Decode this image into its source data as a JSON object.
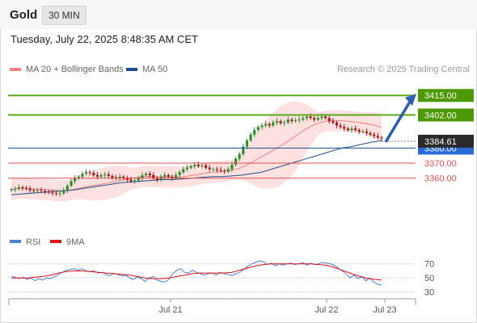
{
  "header": {
    "symbol": "Gold",
    "interval": "30 MIN"
  },
  "timestamp": "Tuesday, July 22, 2025 8:48:35 AM CET",
  "legend": [
    {
      "label": "MA 20 + Bollinger Bands",
      "color": "#f08080"
    },
    {
      "label": "MA 50",
      "color": "#1f4e8c"
    }
  ],
  "source": "Research © 2025 Trading Central",
  "rsi_legend": [
    {
      "label": "RSI",
      "color": "#4a7fd4"
    },
    {
      "label": "9MA",
      "color": "#e01010"
    }
  ],
  "colors": {
    "resistance": "#5aaa1a",
    "pivot": "#1f4e8c",
    "support": "#e05050",
    "up_candle": "#2e8b2e",
    "down_candle": "#a01818",
    "band_fill": "#fde0e0"
  },
  "chart_data": [
    {
      "type": "candlestick",
      "title": "",
      "x_ticks": [
        "Jul 21",
        "Jul 22",
        "Jul 23"
      ],
      "ylim": [
        3326,
        3428
      ],
      "last_price": "3384.61",
      "levels": [
        {
          "value": 3415.0,
          "label": "3415.00",
          "kind": "resistance"
        },
        {
          "value": 3402.0,
          "label": "3402.00",
          "kind": "resistance"
        },
        {
          "value": 3380.0,
          "label": "3380.00",
          "kind": "pivot"
        },
        {
          "value": 3370.0,
          "label": "3370.00",
          "kind": "support"
        },
        {
          "value": 3360.0,
          "label": "3360.00",
          "kind": "support"
        }
      ],
      "close_series": [
        3352.5,
        3353,
        3354,
        3353.5,
        3353,
        3352,
        3351.5,
        3352,
        3351.5,
        3351,
        3350.5,
        3350,
        3349.5,
        3350,
        3352,
        3355,
        3358,
        3360,
        3361,
        3363,
        3364,
        3363.5,
        3362,
        3361,
        3362,
        3362.5,
        3361.5,
        3360.5,
        3360,
        3361,
        3360,
        3359,
        3358,
        3358.5,
        3360,
        3362,
        3363,
        3362,
        3360,
        3359,
        3361,
        3362,
        3361,
        3360,
        3362,
        3364,
        3366,
        3367,
        3368,
        3369,
        3368,
        3368.5,
        3367,
        3366,
        3366,
        3365.5,
        3365,
        3364.5,
        3366,
        3369,
        3373,
        3376,
        3381,
        3385,
        3389,
        3392,
        3394,
        3395,
        3396,
        3395,
        3397,
        3398,
        3396.5,
        3397,
        3399,
        3398,
        3398.5,
        3399,
        3400,
        3401,
        3400,
        3399,
        3400,
        3401,
        3400,
        3398,
        3397,
        3395,
        3394,
        3393,
        3392,
        3393,
        3392,
        3391,
        3391,
        3390,
        3389,
        3388,
        3387,
        3386.5
      ],
      "ma50_series": [
        3349,
        3349.5,
        3350,
        3350.5,
        3351,
        3351.5,
        3352,
        3353,
        3354,
        3355,
        3356,
        3357,
        3357.5,
        3358,
        3358.5,
        3359,
        3359,
        3359.5,
        3360,
        3360.5,
        3361,
        3361,
        3361.5,
        3362,
        3363,
        3364,
        3366,
        3368,
        3370,
        3372,
        3374,
        3376,
        3378,
        3380,
        3381,
        3382.5,
        3384,
        3385
      ],
      "rsi": {
        "levels": [
          70,
          50,
          30
        ],
        "ylim": [
          25,
          80
        ],
        "rsi_series": [
          52,
          51,
          49,
          51,
          48,
          50,
          46,
          49,
          47,
          50,
          49,
          52,
          55,
          58,
          61,
          62,
          63,
          61,
          63,
          60,
          59,
          60,
          57,
          58,
          55,
          53,
          56,
          55,
          53,
          54,
          50,
          48,
          51,
          49,
          45,
          50,
          52,
          47,
          45,
          44,
          48,
          56,
          61,
          63,
          58,
          57,
          61,
          58,
          56,
          54,
          56,
          57,
          54,
          58,
          56,
          55,
          53,
          56,
          58,
          62,
          66,
          70,
          72,
          74,
          73,
          69,
          71,
          67,
          70,
          68,
          70,
          71,
          69,
          70,
          72,
          68,
          71,
          69,
          70,
          72,
          71,
          70,
          68,
          64,
          60,
          56,
          50,
          54,
          49,
          52,
          46,
          50,
          44,
          41,
          40
        ],
        "ma9_series": [
          50,
          50,
          50,
          51,
          52,
          54,
          57,
          59,
          60,
          60,
          59,
          58,
          57,
          56,
          55,
          54,
          52,
          50,
          49,
          49,
          50,
          52,
          54,
          56,
          57,
          57,
          57,
          57,
          58,
          61,
          64,
          67,
          69,
          70,
          70,
          70,
          70,
          70,
          70,
          69,
          68,
          65,
          61,
          57,
          53,
          50,
          48,
          47
        ]
      }
    }
  ]
}
